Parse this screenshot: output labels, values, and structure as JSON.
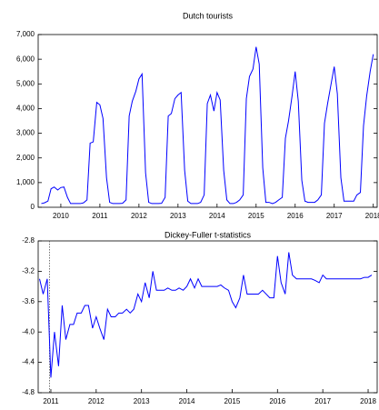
{
  "chart_data": [
    {
      "type": "line",
      "title": "Dutch tourists",
      "x": [
        2010,
        2010.08,
        2010.17,
        2010.25,
        2010.33,
        2010.42,
        2010.5,
        2010.58,
        2010.67,
        2010.75,
        2010.83,
        2010.92,
        2011,
        2011.08,
        2011.17,
        2011.25,
        2011.33,
        2011.42,
        2011.5,
        2011.58,
        2011.67,
        2011.75,
        2011.83,
        2011.92,
        2012,
        2012.08,
        2012.17,
        2012.25,
        2012.33,
        2012.42,
        2012.5,
        2012.58,
        2012.67,
        2012.75,
        2012.83,
        2012.92,
        2013,
        2013.08,
        2013.17,
        2013.25,
        2013.33,
        2013.42,
        2013.5,
        2013.58,
        2013.67,
        2013.75,
        2013.83,
        2013.92,
        2014,
        2014.08,
        2014.17,
        2014.25,
        2014.33,
        2014.42,
        2014.5,
        2014.58,
        2014.67,
        2014.75,
        2014.83,
        2014.92,
        2015,
        2015.08,
        2015.17,
        2015.25,
        2015.33,
        2015.42,
        2015.5,
        2015.58,
        2015.67,
        2015.75,
        2015.83,
        2015.92,
        2016,
        2016.08,
        2016.17,
        2016.25,
        2016.33,
        2016.42,
        2016.5,
        2016.58,
        2016.67,
        2016.75,
        2016.83,
        2016.92,
        2017,
        2017.08,
        2017.17,
        2017.25,
        2017.33,
        2017.42,
        2017.5,
        2017.58,
        2017.67,
        2017.75,
        2017.83,
        2017.92,
        2018,
        2018.08,
        2018.17,
        2018.25,
        2018.33,
        2018.42,
        2018.5
      ],
      "series": [
        {
          "color": "#0000ff",
          "values": [
            150,
            180,
            250,
            750,
            820,
            700,
            800,
            820,
            400,
            150,
            150,
            150,
            150,
            180,
            300,
            2600,
            2650,
            4250,
            4150,
            3600,
            1200,
            200,
            150,
            150,
            150,
            160,
            300,
            3700,
            4300,
            4700,
            5200,
            5400,
            1400,
            200,
            150,
            150,
            150,
            160,
            400,
            3700,
            3800,
            4400,
            4550,
            4650,
            1500,
            250,
            150,
            150,
            150,
            200,
            500,
            4200,
            4550,
            3900,
            4650,
            4350,
            1500,
            300,
            150,
            150,
            200,
            300,
            500,
            4400,
            5300,
            5600,
            6500,
            5800,
            1600,
            200,
            200,
            150,
            200,
            300,
            400,
            2800,
            3500,
            4500,
            5500,
            4300,
            1100,
            250,
            200,
            200,
            200,
            300,
            500,
            3400,
            4200,
            5000,
            5700,
            4600,
            1200,
            250,
            250,
            250,
            250,
            500,
            600,
            3300,
            4500,
            5500,
            6200
          ]
        }
      ],
      "xlim": [
        2009.92,
        2018.6
      ],
      "xticks": [
        {
          "value": 2010.5,
          "label": "2010"
        },
        {
          "value": 2011.5,
          "label": "2011"
        },
        {
          "value": 2012.5,
          "label": "2012"
        },
        {
          "value": 2013.5,
          "label": "2013"
        },
        {
          "value": 2014.5,
          "label": "2014"
        },
        {
          "value": 2015.5,
          "label": "2015"
        },
        {
          "value": 2016.5,
          "label": "2016"
        },
        {
          "value": 2017.5,
          "label": "2017"
        },
        {
          "value": 2018.5,
          "label": "2018"
        }
      ],
      "ylim": [
        0,
        7000
      ],
      "yticks": [
        0,
        {
          "value": 1000,
          "label": "1,000"
        },
        {
          "value": 2000,
          "label": "2,000"
        },
        {
          "value": 3000,
          "label": "3,000"
        },
        {
          "value": 4000,
          "label": "4,000"
        },
        {
          "value": 5000,
          "label": "5,000"
        },
        {
          "value": 6000,
          "label": "6,000"
        },
        {
          "value": 7000,
          "label": "7,000"
        }
      ]
    },
    {
      "type": "line",
      "title": "Dickey-Fuller t-statistics",
      "x": [
        2010.75,
        2010.83,
        2010.92,
        2011,
        2011.08,
        2011.17,
        2011.25,
        2011.33,
        2011.42,
        2011.5,
        2011.58,
        2011.67,
        2011.75,
        2011.83,
        2011.92,
        2012,
        2012.08,
        2012.17,
        2012.25,
        2012.33,
        2012.42,
        2012.5,
        2012.58,
        2012.67,
        2012.75,
        2012.83,
        2012.92,
        2013,
        2013.08,
        2013.17,
        2013.25,
        2013.33,
        2013.42,
        2013.5,
        2013.58,
        2013.67,
        2013.75,
        2013.83,
        2013.92,
        2014,
        2014.08,
        2014.17,
        2014.25,
        2014.33,
        2014.42,
        2014.5,
        2014.58,
        2014.67,
        2014.75,
        2014.83,
        2014.92,
        2015,
        2015.08,
        2015.17,
        2015.25,
        2015.33,
        2015.42,
        2015.5,
        2015.58,
        2015.67,
        2015.75,
        2015.83,
        2015.92,
        2016,
        2016.08,
        2016.17,
        2016.25,
        2016.33,
        2016.42,
        2016.5,
        2016.58,
        2016.67,
        2016.75,
        2016.83,
        2016.92,
        2017,
        2017.08,
        2017.17,
        2017.25,
        2017.33,
        2017.42,
        2017.5,
        2017.58,
        2017.67,
        2017.75,
        2017.83,
        2017.92,
        2018,
        2018.08
      ],
      "series": [
        {
          "color": "#0000ff",
          "values": [
            -3.3,
            -3.5,
            -3.3,
            -4.6,
            -4.0,
            -4.45,
            -3.65,
            -4.1,
            -3.9,
            -3.9,
            -3.75,
            -3.75,
            -3.65,
            -3.65,
            -3.95,
            -3.8,
            -3.95,
            -4.1,
            -3.7,
            -3.8,
            -3.8,
            -3.75,
            -3.75,
            -3.7,
            -3.75,
            -3.7,
            -3.5,
            -3.6,
            -3.35,
            -3.55,
            -3.2,
            -3.45,
            -3.45,
            -3.45,
            -3.42,
            -3.45,
            -3.45,
            -3.42,
            -3.45,
            -3.4,
            -3.3,
            -3.42,
            -3.3,
            -3.4,
            -3.4,
            -3.4,
            -3.4,
            -3.4,
            -3.38,
            -3.42,
            -3.45,
            -3.6,
            -3.68,
            -3.55,
            -3.25,
            -3.5,
            -3.5,
            -3.5,
            -3.5,
            -3.45,
            -3.5,
            -3.55,
            -3.55,
            -3.0,
            -3.35,
            -3.5,
            -2.95,
            -3.25,
            -3.3,
            -3.3,
            -3.3,
            -3.3,
            -3.3,
            -3.32,
            -3.35,
            -3.25,
            -3.3,
            -3.3,
            -3.3,
            -3.3,
            -3.3,
            -3.3,
            -3.3,
            -3.3,
            -3.3,
            -3.3,
            -3.28,
            -3.28,
            -3.25
          ]
        }
      ],
      "vline": 2010.97,
      "xlim": [
        2010.72,
        2018.2
      ],
      "xticks": [
        2011,
        2012,
        2013,
        2014,
        2015,
        2016,
        2017,
        2018
      ],
      "ylim": [
        -4.8,
        -2.8
      ],
      "yticks": [
        -4.8,
        -4.4,
        {
          "value": -4.0,
          "label": "-4.0"
        },
        -3.6,
        -3.2,
        -2.8
      ]
    }
  ]
}
